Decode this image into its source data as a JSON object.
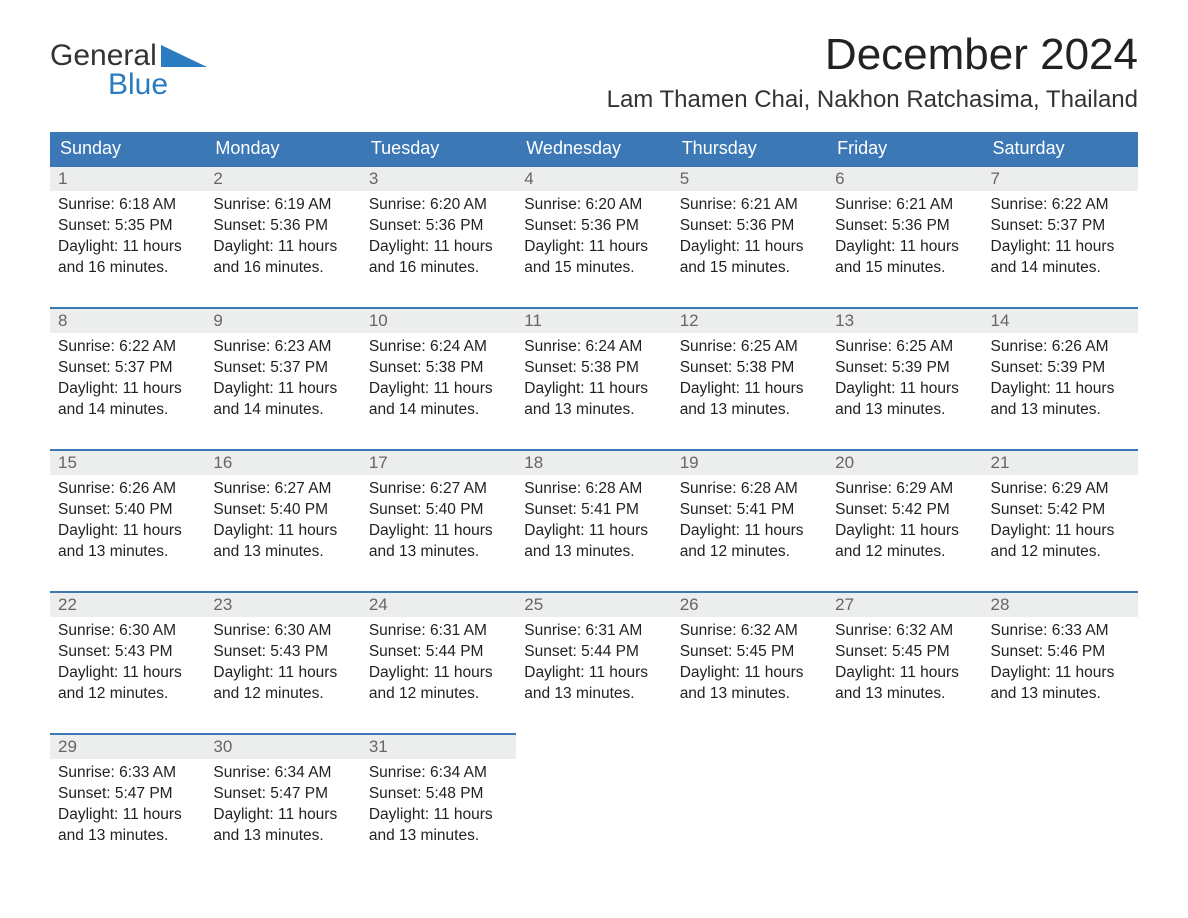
{
  "logo": {
    "word1": "General",
    "word2": "Blue"
  },
  "title": "December 2024",
  "location": "Lam Thamen Chai, Nakhon Ratchasima, Thailand",
  "colors": {
    "header_bg": "#3b78b5",
    "header_text": "#ffffff",
    "daynum_bg": "#eceded",
    "daynum_text": "#666666",
    "border_top": "#3b78b5",
    "logo_blue": "#2a7bbf",
    "body_text": "#222222",
    "background": "#ffffff"
  },
  "typography": {
    "title_fontsize": 44,
    "location_fontsize": 24,
    "weekday_fontsize": 18,
    "cell_fontsize": 15.5,
    "font_family": "Arial"
  },
  "layout": {
    "columns": 7,
    "rows": 5,
    "start_weekday_index": 0
  },
  "weekdays": [
    "Sunday",
    "Monday",
    "Tuesday",
    "Wednesday",
    "Thursday",
    "Friday",
    "Saturday"
  ],
  "days": [
    {
      "n": 1,
      "sunrise": "6:18 AM",
      "sunset": "5:35 PM",
      "daylight": "11 hours and 16 minutes."
    },
    {
      "n": 2,
      "sunrise": "6:19 AM",
      "sunset": "5:36 PM",
      "daylight": "11 hours and 16 minutes."
    },
    {
      "n": 3,
      "sunrise": "6:20 AM",
      "sunset": "5:36 PM",
      "daylight": "11 hours and 16 minutes."
    },
    {
      "n": 4,
      "sunrise": "6:20 AM",
      "sunset": "5:36 PM",
      "daylight": "11 hours and 15 minutes."
    },
    {
      "n": 5,
      "sunrise": "6:21 AM",
      "sunset": "5:36 PM",
      "daylight": "11 hours and 15 minutes."
    },
    {
      "n": 6,
      "sunrise": "6:21 AM",
      "sunset": "5:36 PM",
      "daylight": "11 hours and 15 minutes."
    },
    {
      "n": 7,
      "sunrise": "6:22 AM",
      "sunset": "5:37 PM",
      "daylight": "11 hours and 14 minutes."
    },
    {
      "n": 8,
      "sunrise": "6:22 AM",
      "sunset": "5:37 PM",
      "daylight": "11 hours and 14 minutes."
    },
    {
      "n": 9,
      "sunrise": "6:23 AM",
      "sunset": "5:37 PM",
      "daylight": "11 hours and 14 minutes."
    },
    {
      "n": 10,
      "sunrise": "6:24 AM",
      "sunset": "5:38 PM",
      "daylight": "11 hours and 14 minutes."
    },
    {
      "n": 11,
      "sunrise": "6:24 AM",
      "sunset": "5:38 PM",
      "daylight": "11 hours and 13 minutes."
    },
    {
      "n": 12,
      "sunrise": "6:25 AM",
      "sunset": "5:38 PM",
      "daylight": "11 hours and 13 minutes."
    },
    {
      "n": 13,
      "sunrise": "6:25 AM",
      "sunset": "5:39 PM",
      "daylight": "11 hours and 13 minutes."
    },
    {
      "n": 14,
      "sunrise": "6:26 AM",
      "sunset": "5:39 PM",
      "daylight": "11 hours and 13 minutes."
    },
    {
      "n": 15,
      "sunrise": "6:26 AM",
      "sunset": "5:40 PM",
      "daylight": "11 hours and 13 minutes."
    },
    {
      "n": 16,
      "sunrise": "6:27 AM",
      "sunset": "5:40 PM",
      "daylight": "11 hours and 13 minutes."
    },
    {
      "n": 17,
      "sunrise": "6:27 AM",
      "sunset": "5:40 PM",
      "daylight": "11 hours and 13 minutes."
    },
    {
      "n": 18,
      "sunrise": "6:28 AM",
      "sunset": "5:41 PM",
      "daylight": "11 hours and 13 minutes."
    },
    {
      "n": 19,
      "sunrise": "6:28 AM",
      "sunset": "5:41 PM",
      "daylight": "11 hours and 12 minutes."
    },
    {
      "n": 20,
      "sunrise": "6:29 AM",
      "sunset": "5:42 PM",
      "daylight": "11 hours and 12 minutes."
    },
    {
      "n": 21,
      "sunrise": "6:29 AM",
      "sunset": "5:42 PM",
      "daylight": "11 hours and 12 minutes."
    },
    {
      "n": 22,
      "sunrise": "6:30 AM",
      "sunset": "5:43 PM",
      "daylight": "11 hours and 12 minutes."
    },
    {
      "n": 23,
      "sunrise": "6:30 AM",
      "sunset": "5:43 PM",
      "daylight": "11 hours and 12 minutes."
    },
    {
      "n": 24,
      "sunrise": "6:31 AM",
      "sunset": "5:44 PM",
      "daylight": "11 hours and 12 minutes."
    },
    {
      "n": 25,
      "sunrise": "6:31 AM",
      "sunset": "5:44 PM",
      "daylight": "11 hours and 13 minutes."
    },
    {
      "n": 26,
      "sunrise": "6:32 AM",
      "sunset": "5:45 PM",
      "daylight": "11 hours and 13 minutes."
    },
    {
      "n": 27,
      "sunrise": "6:32 AM",
      "sunset": "5:45 PM",
      "daylight": "11 hours and 13 minutes."
    },
    {
      "n": 28,
      "sunrise": "6:33 AM",
      "sunset": "5:46 PM",
      "daylight": "11 hours and 13 minutes."
    },
    {
      "n": 29,
      "sunrise": "6:33 AM",
      "sunset": "5:47 PM",
      "daylight": "11 hours and 13 minutes."
    },
    {
      "n": 30,
      "sunrise": "6:34 AM",
      "sunset": "5:47 PM",
      "daylight": "11 hours and 13 minutes."
    },
    {
      "n": 31,
      "sunrise": "6:34 AM",
      "sunset": "5:48 PM",
      "daylight": "11 hours and 13 minutes."
    }
  ],
  "labels": {
    "sunrise": "Sunrise: ",
    "sunset": "Sunset: ",
    "daylight": "Daylight: "
  }
}
